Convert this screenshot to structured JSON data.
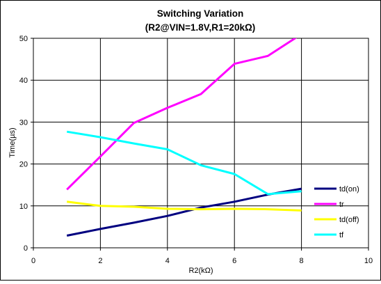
{
  "chart_data": {
    "type": "line",
    "title": "Switching Variation",
    "subtitle": "(R2@VIN=1.8V,R1=20kΩ)",
    "xlabel": "R2(kΩ)",
    "ylabel": "Time(µs)",
    "xlim": [
      0,
      10
    ],
    "ylim": [
      0,
      50
    ],
    "xticks": [
      "0",
      "2",
      "4",
      "6",
      "8",
      "10"
    ],
    "yticks": [
      "0",
      "10",
      "20",
      "30",
      "40",
      "50"
    ],
    "grid": true,
    "legend_position": "right",
    "series": [
      {
        "name": "td(on)",
        "color": "#000080",
        "x": [
          1,
          2,
          3,
          4,
          5,
          6,
          7,
          8
        ],
        "y": [
          2.9,
          4.5,
          6.0,
          7.6,
          9.6,
          11.0,
          12.7,
          14.1
        ]
      },
      {
        "name": "tr",
        "color": "#ff00ff",
        "x": [
          1,
          2,
          3,
          4,
          5,
          6,
          7,
          8
        ],
        "y": [
          13.9,
          21.8,
          29.8,
          33.4,
          36.7,
          43.9,
          45.8,
          51.0
        ]
      },
      {
        "name": "td(off)",
        "color": "#ffff00",
        "x": [
          1,
          2,
          3,
          4,
          5,
          6,
          7,
          8
        ],
        "y": [
          11.0,
          10.0,
          9.8,
          9.3,
          9.2,
          9.3,
          9.2,
          8.9
        ]
      },
      {
        "name": "tf",
        "color": "#00ffff",
        "x": [
          1,
          2,
          3,
          4,
          5,
          6,
          7,
          8
        ],
        "y": [
          27.7,
          26.4,
          24.9,
          23.5,
          19.7,
          17.6,
          12.8,
          13.5
        ]
      }
    ]
  }
}
